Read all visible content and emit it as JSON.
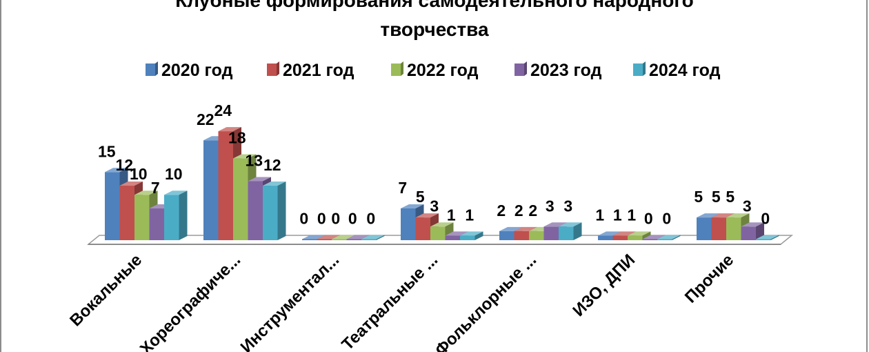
{
  "chart_data": {
    "type": "bar",
    "title_lines": [
      "Клубные формирования самодеятельного народного",
      "творчества"
    ],
    "categories": [
      "Вокальные",
      "Хореографиче...",
      "Инструментал...",
      "Театральные ...",
      "Фольклорные ...",
      "ИЗО, ДПИ",
      "Прочие"
    ],
    "series": [
      {
        "name": "2020 год",
        "color": "#4f81bd",
        "values": [
          15,
          22,
          0,
          7,
          2,
          1,
          5
        ]
      },
      {
        "name": "2021 год",
        "color": "#c0504d",
        "values": [
          12,
          24,
          0,
          5,
          2,
          1,
          5
        ]
      },
      {
        "name": "2022 год",
        "color": "#9bbb59",
        "values": [
          10,
          18,
          0,
          3,
          2,
          1,
          5
        ]
      },
      {
        "name": "2023 год",
        "color": "#8064a2",
        "values": [
          7,
          13,
          0,
          1,
          3,
          0,
          3
        ]
      },
      {
        "name": "2024 год",
        "color": "#4bacc6",
        "values": [
          10,
          12,
          0,
          1,
          3,
          0,
          0
        ]
      }
    ],
    "legend_position": "top",
    "grid": false,
    "three_d": true
  }
}
